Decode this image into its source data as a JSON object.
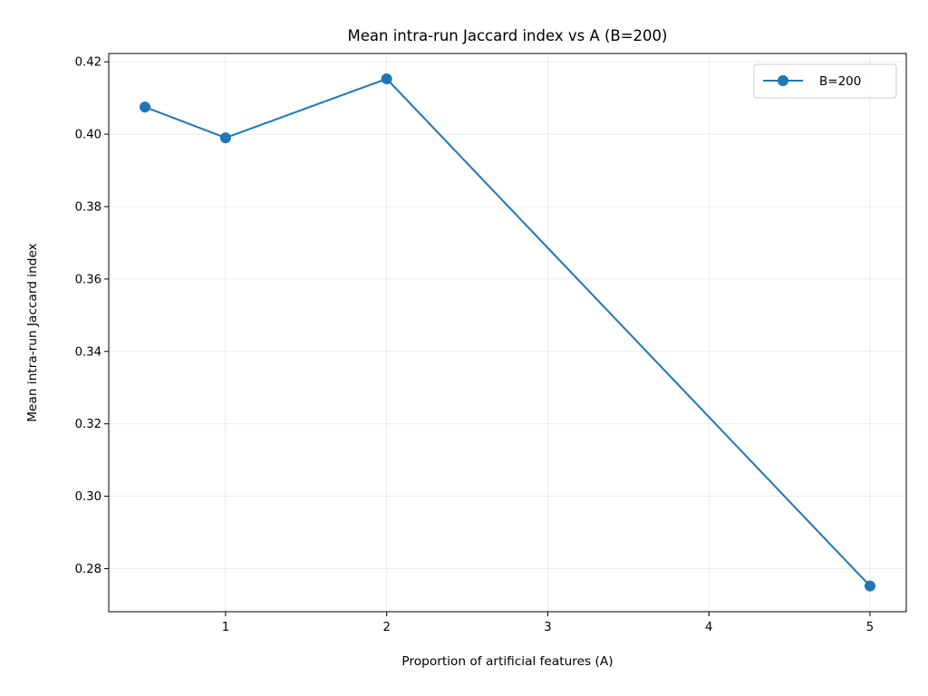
{
  "chart_data": {
    "type": "line",
    "title": "Mean intra-run Jaccard index vs A (B=200)",
    "xlabel": "Proportion of artificial features (A)",
    "ylabel": "Mean intra-run Jaccard index",
    "xlim": [
      0.275,
      5.225
    ],
    "ylim": [
      0.2681,
      0.4223
    ],
    "x_ticks": [
      1,
      2,
      3,
      4,
      5
    ],
    "y_ticks": [
      0.28,
      0.3,
      0.32,
      0.34,
      0.36,
      0.38,
      0.4,
      0.42
    ],
    "grid": true,
    "legend_position": "top-right",
    "series": [
      {
        "name": "B=200",
        "color": "#1f77b4",
        "marker": "circle",
        "x": [
          0.5,
          1,
          2,
          5
        ],
        "y": [
          0.4075,
          0.399,
          0.4153,
          0.2752
        ]
      }
    ]
  }
}
